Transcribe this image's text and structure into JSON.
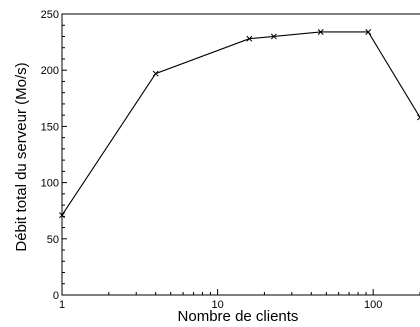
{
  "chart_data": {
    "type": "line",
    "xlabel": "Nombre de clients",
    "ylabel": "Débit total du serveur (Mo/s)",
    "x_scale": "log",
    "xlim": [
      1,
      200
    ],
    "ylim": [
      0,
      250
    ],
    "x_ticks": [
      {
        "value": 1,
        "label": "1"
      },
      {
        "value": 10,
        "label": "10"
      },
      {
        "value": 100,
        "label": "100"
      }
    ],
    "y_ticks": [
      {
        "value": 0,
        "label": "0"
      },
      {
        "value": 50,
        "label": "50"
      },
      {
        "value": 100,
        "label": "100"
      },
      {
        "value": 150,
        "label": "150"
      },
      {
        "value": 200,
        "label": "200"
      },
      {
        "value": 250,
        "label": "250"
      }
    ],
    "grid": false,
    "series": [
      {
        "color": "#000000",
        "marker": "x",
        "points": [
          {
            "x": 1,
            "y": 71
          },
          {
            "x": 4,
            "y": 197
          },
          {
            "x": 16,
            "y": 228
          },
          {
            "x": 23,
            "y": 230
          },
          {
            "x": 46,
            "y": 234
          },
          {
            "x": 93,
            "y": 234
          },
          {
            "x": 200,
            "y": 158
          }
        ]
      }
    ]
  }
}
